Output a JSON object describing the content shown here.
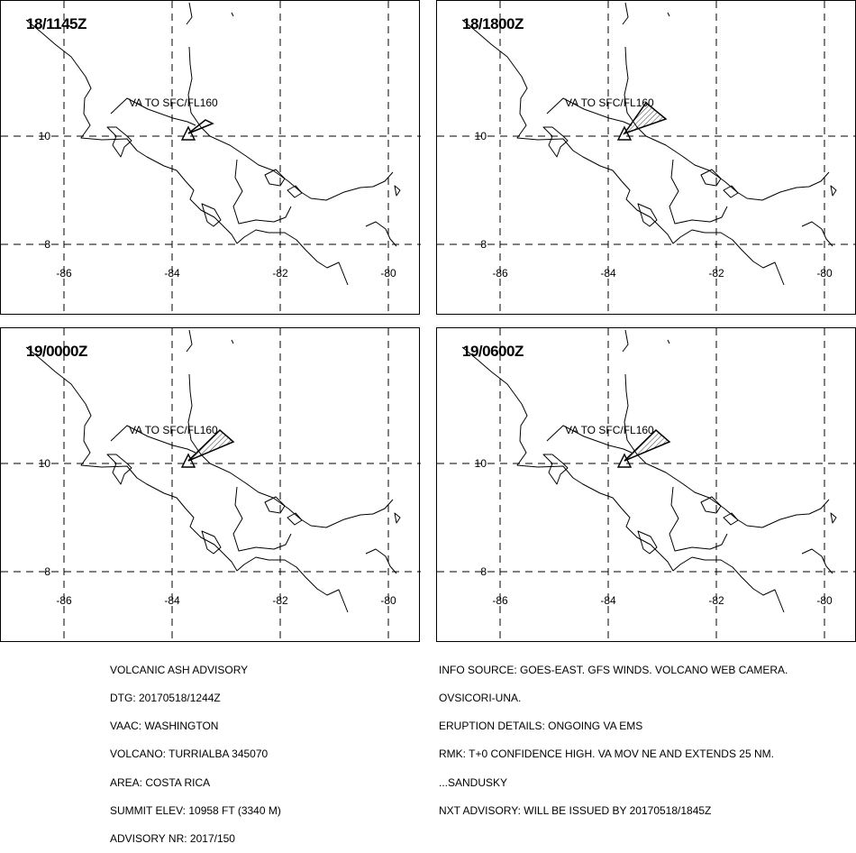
{
  "panels": [
    {
      "time": "18/1145Z",
      "label": "VA TO SFC/FL160",
      "plume": "small"
    },
    {
      "time": "18/1800Z",
      "label": "VA TO SFC/FL160",
      "plume": "medium"
    },
    {
      "time": "19/0000Z",
      "label": "VA TO SFC/FL160",
      "plume": "large"
    },
    {
      "time": "19/0600Z",
      "label": "VA TO SFC/FL160",
      "plume": "large"
    }
  ],
  "axes": {
    "lat_labels": [
      "10",
      "8"
    ],
    "lon_labels": [
      "-86",
      "-84",
      "-82",
      "-80"
    ]
  },
  "advisory_left": {
    "title": "VOLCANIC ASH ADVISORY",
    "dtg": "DTG: 20170518/1244Z",
    "vaac": "VAAC: WASHINGTON",
    "volcano": "VOLCANO: TURRIALBA 345070",
    "area": "AREA: COSTA RICA",
    "summit": "SUMMIT ELEV: 10958 FT (3340 M)",
    "advisory_nr": "ADVISORY NR: 2017/150"
  },
  "advisory_right": {
    "info_source": "INFO SOURCE: GOES-EAST. GFS WINDS. VOLCANO WEB CAMERA.",
    "info_source_2": "OVSICORI-UNA.",
    "eruption": "ERUPTION DETAILS: ONGOING VA EMS",
    "rmk": "RMK: T+0 CONFIDENCE HIGH. VA MOV NE AND EXTENDS 25 NM.",
    "forecaster": "...SANDUSKY",
    "next": "NXT ADVISORY: WILL BE ISSUED BY 20170518/1845Z"
  }
}
